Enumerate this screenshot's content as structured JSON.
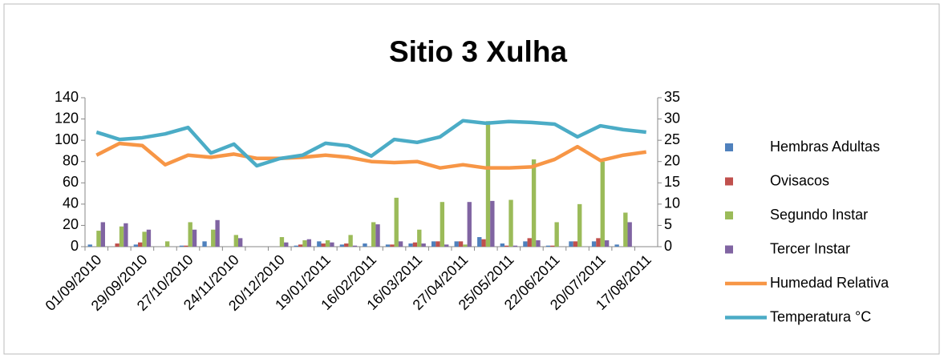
{
  "chart_data": {
    "type": "bar-line",
    "title": "Sitio 3 Xulha",
    "categories": [
      "01/09/2010",
      null,
      "29/09/2010",
      null,
      "27/10/2010",
      null,
      "24/11/2010",
      null,
      "20/12/2010",
      null,
      "19/01/2011",
      null,
      "16/02/2011",
      null,
      "16/03/2011",
      null,
      "27/04/2011",
      null,
      "25/05/2011",
      null,
      "22/06/2011",
      null,
      "20/07/2011",
      null,
      "17/08/2011"
    ],
    "ylim": [
      0,
      140
    ],
    "yticks": [
      0,
      20,
      40,
      60,
      80,
      100,
      120,
      140
    ],
    "y2lim": [
      0,
      35
    ],
    "y2ticks": [
      0,
      5,
      10,
      15,
      20,
      25,
      30,
      35
    ],
    "series": [
      {
        "name": "Hembras Adultas",
        "color": "#4f81bd",
        "kind": "bar",
        "values": [
          2,
          0,
          2,
          0,
          1,
          5,
          0,
          0,
          0,
          1,
          5,
          2,
          3,
          2,
          3,
          5,
          5,
          9,
          3,
          5,
          1,
          5,
          5,
          2,
          0
        ]
      },
      {
        "name": "Ovisacos",
        "color": "#c0504d",
        "kind": "bar",
        "values": [
          0,
          3,
          4,
          0,
          1,
          0,
          0,
          0,
          0,
          2,
          3,
          3,
          0,
          2,
          4,
          5,
          5,
          7,
          1,
          8,
          1,
          5,
          8,
          0,
          0
        ]
      },
      {
        "name": "Segundo Instar",
        "color": "#9bbb59",
        "kind": "bar",
        "values": [
          15,
          19,
          14,
          5,
          23,
          16,
          11,
          0,
          9,
          6,
          6,
          11,
          23,
          46,
          16,
          42,
          2,
          118,
          44,
          82,
          23,
          40,
          80,
          32,
          0
        ]
      },
      {
        "name": "Tercer Instar",
        "color": "#8064a2",
        "kind": "bar",
        "values": [
          23,
          22,
          16,
          0,
          16,
          25,
          8,
          0,
          4,
          7,
          4,
          1,
          21,
          5,
          3,
          2,
          42,
          43,
          1,
          6,
          0,
          0,
          6,
          23,
          0
        ]
      },
      {
        "name": "Humedad Relativa",
        "color": "#f79646",
        "kind": "line",
        "values": [
          86,
          97,
          95,
          77,
          86,
          84,
          87,
          83,
          83,
          84,
          86,
          84,
          80,
          79,
          80,
          74,
          77,
          74,
          74,
          75,
          82,
          94,
          81,
          86,
          89
        ]
      },
      {
        "name": "Temperatura °C",
        "color": "#4bacc6",
        "kind": "line",
        "axis": "y2",
        "values": [
          26.9,
          25.2,
          25.6,
          26.5,
          28,
          22,
          24.1,
          19,
          20.7,
          21.5,
          24.3,
          23.7,
          21.3,
          25.2,
          24.5,
          25.8,
          29.6,
          29,
          29.4,
          29.2,
          28.8,
          25.8,
          28.4,
          27.5,
          26.9
        ]
      }
    ]
  }
}
